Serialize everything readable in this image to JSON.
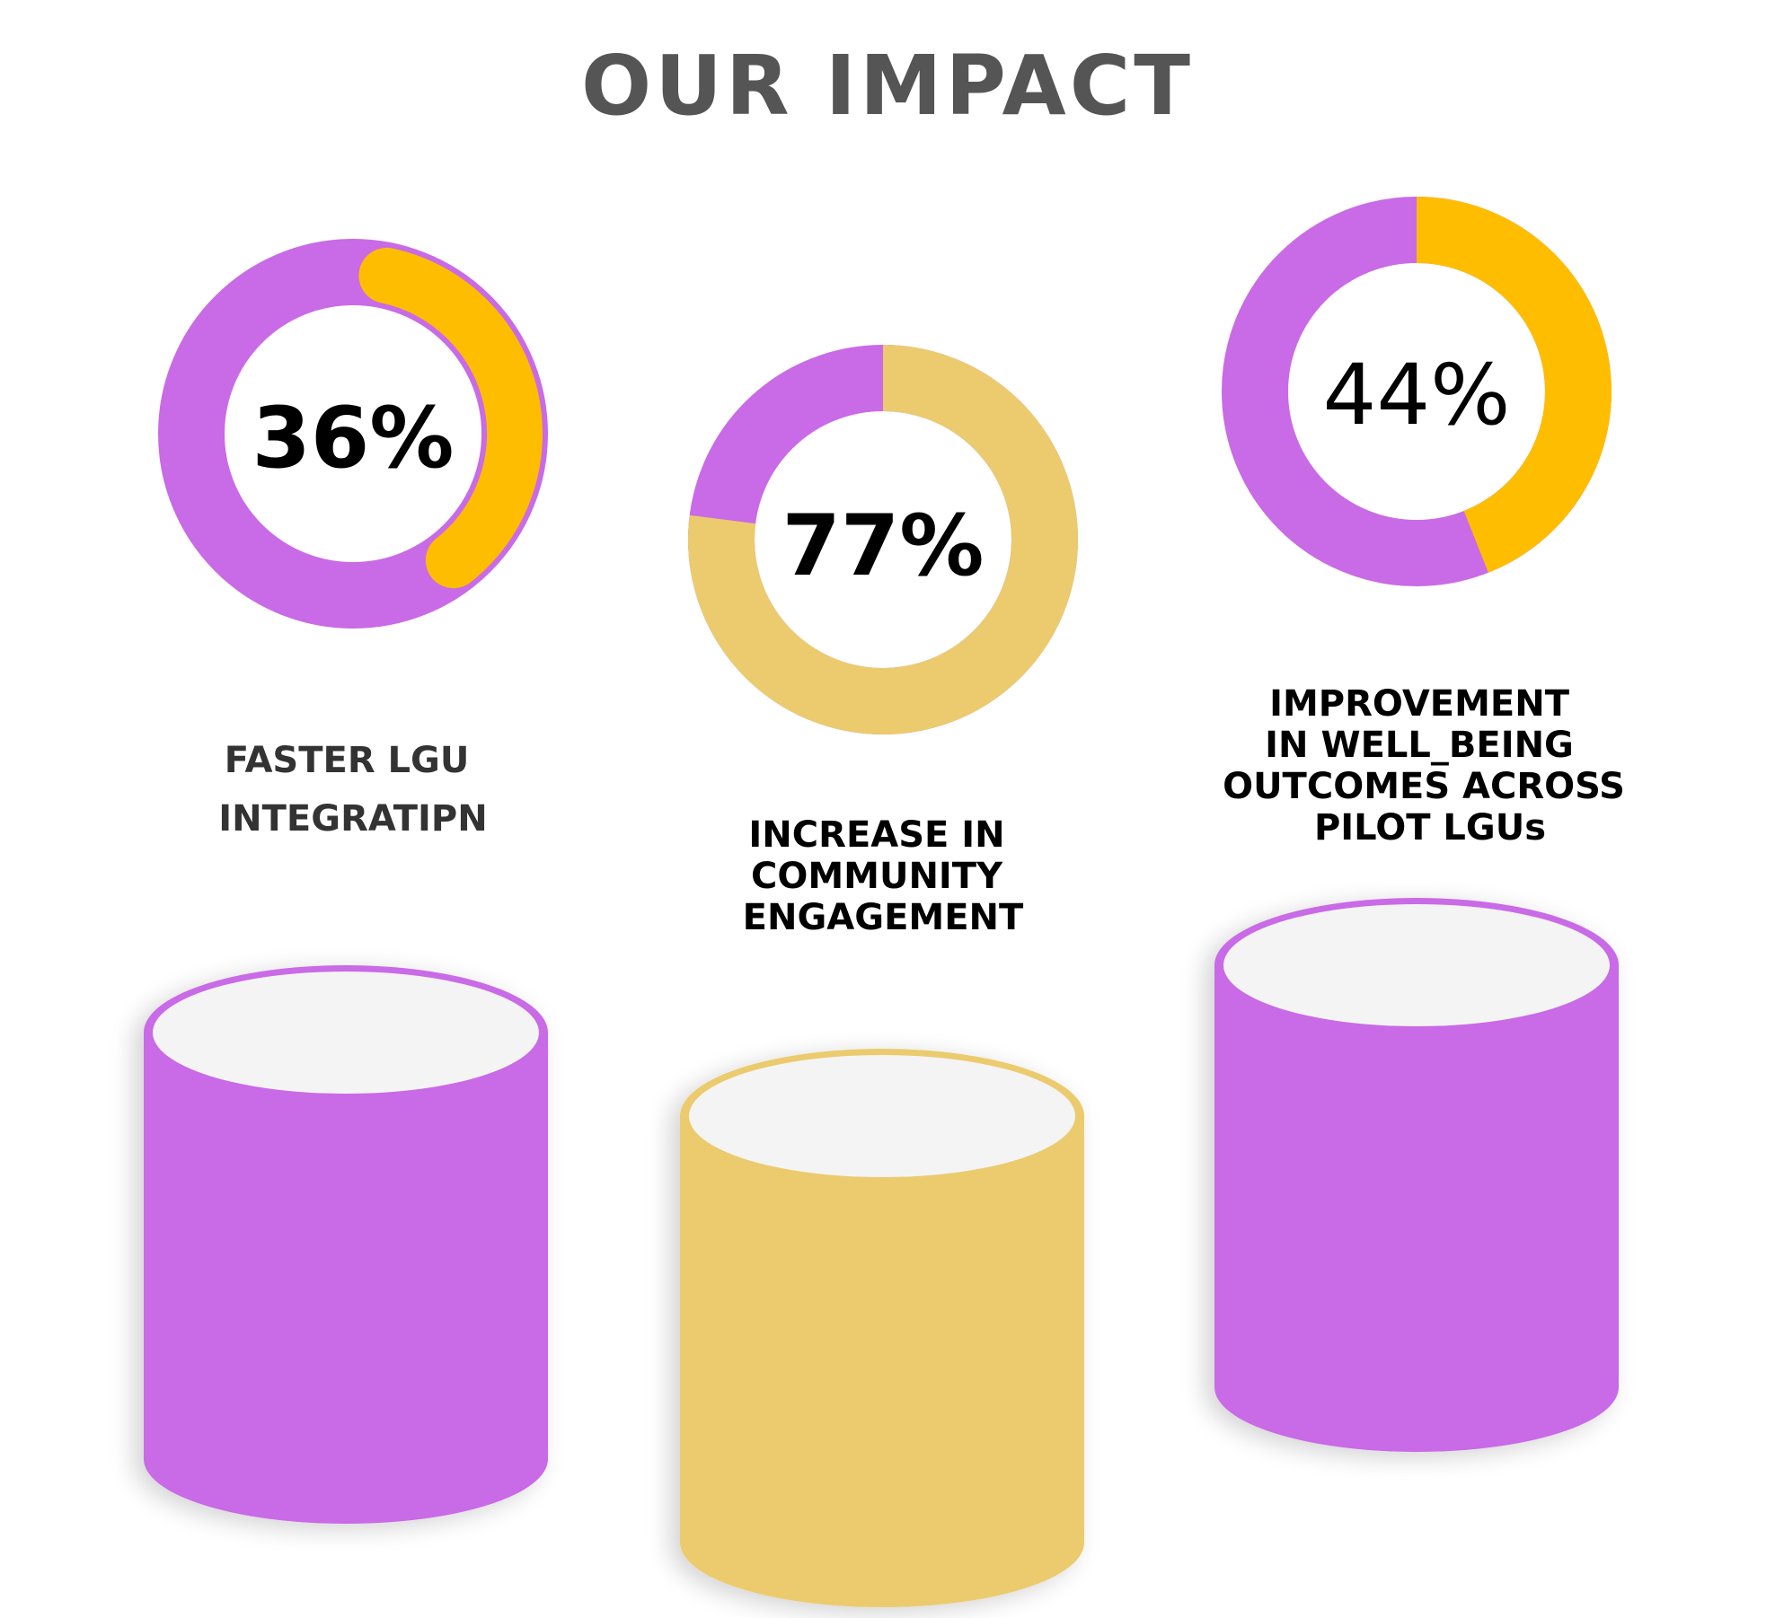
{
  "title": "OUR IMPACT",
  "colors": {
    "purple": "#c96ae6",
    "yellow": "#ffbd00",
    "sand": "#ebcb6e",
    "title_gray": "#555555",
    "caption_dark": "#333333",
    "cylinder_top": "#f4f4f4"
  },
  "stats": [
    {
      "value_label": "36%",
      "caption_lines": [
        "FASTER LGU",
        "INTEGRATIPN"
      ],
      "donut_fraction": 0.36,
      "ring_color": "purple",
      "arc_color": "yellow",
      "cylinder_color": "purple"
    },
    {
      "value_label": "77%",
      "caption_lines": [
        "INCREASE IN",
        "COMMUNITY",
        "ENGAGEMENT"
      ],
      "donut_fraction": 0.77,
      "ring_color": "purple",
      "arc_color": "sand",
      "cylinder_color": "sand"
    },
    {
      "value_label": "44%",
      "caption_lines": [
        "IMPROVEMENT",
        "IN  WELL_BEING",
        "OUTCOMES  ACROSS",
        "PILOT  LGUs"
      ],
      "donut_fraction": 0.44,
      "ring_color": "purple",
      "arc_color": "yellow",
      "cylinder_color": "purple"
    }
  ]
}
